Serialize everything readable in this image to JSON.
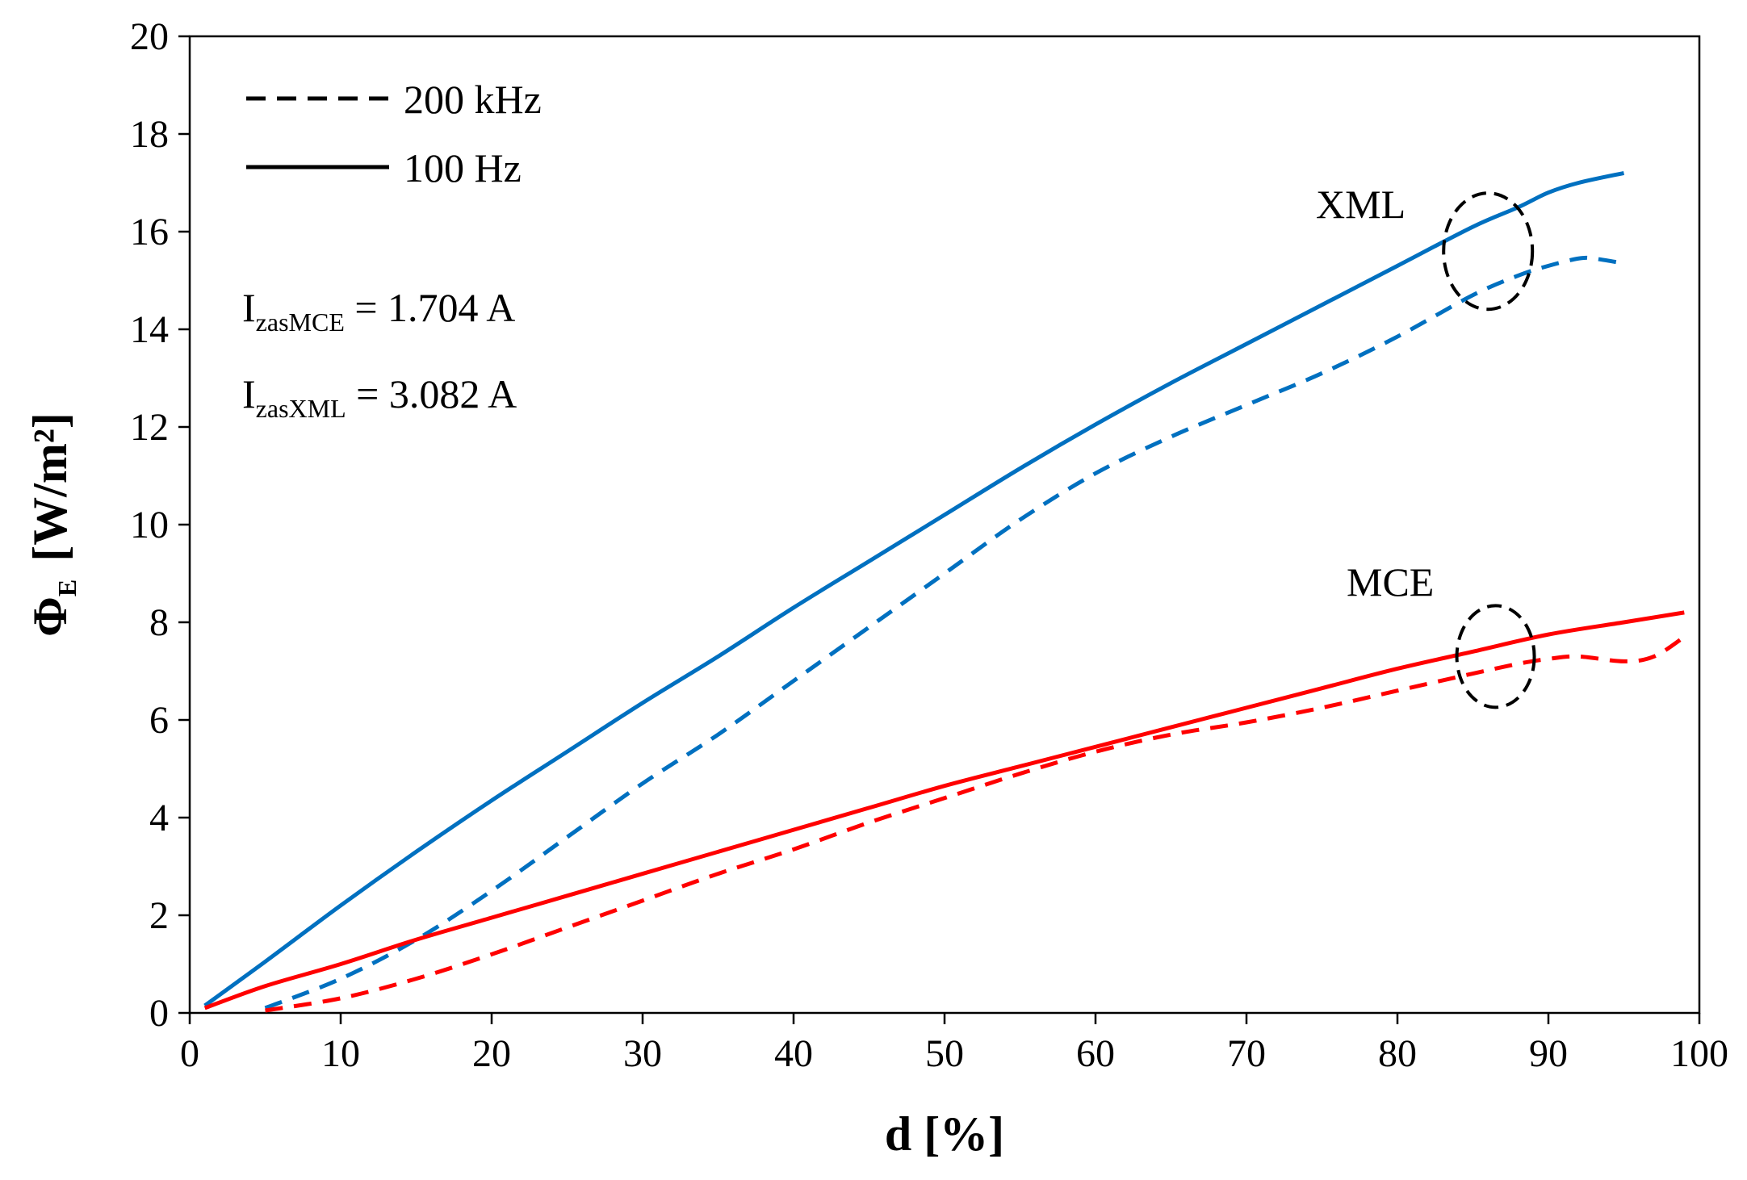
{
  "chart_data": {
    "type": "line",
    "title": "",
    "xlabel": "d [%]",
    "ylabel": {
      "symbol": "Φ",
      "subscript": "E",
      "unit": "[W/m²]"
    },
    "xlim": [
      0,
      100
    ],
    "ylim": [
      0,
      20
    ],
    "xticks": [
      "0",
      "10",
      "20",
      "30",
      "40",
      "50",
      "60",
      "70",
      "80",
      "90",
      "100"
    ],
    "yticks": [
      "0",
      "2",
      "4",
      "6",
      "8",
      "10",
      "12",
      "14",
      "16",
      "18",
      "20"
    ],
    "grid": false,
    "legend": {
      "position": "top-left",
      "entries": [
        {
          "label": "200 kHz",
          "style": "dashed"
        },
        {
          "label": "100 Hz",
          "style": "solid"
        }
      ]
    },
    "colors": {
      "XML": "#0070C0",
      "MCE": "#FF0000"
    },
    "series": [
      {
        "name": "XML 100 Hz",
        "group": "XML",
        "style": "solid",
        "x": [
          1,
          5,
          10,
          15,
          20,
          25,
          30,
          35,
          40,
          45,
          50,
          55,
          60,
          65,
          70,
          75,
          80,
          85,
          88,
          90,
          92,
          95
        ],
        "y": [
          0.15,
          1.05,
          2.2,
          3.3,
          4.35,
          5.35,
          6.35,
          7.3,
          8.3,
          9.25,
          10.2,
          11.15,
          12.05,
          12.9,
          13.7,
          14.5,
          15.3,
          16.1,
          16.5,
          16.8,
          17.0,
          17.2
        ]
      },
      {
        "name": "XML 200 kHz",
        "group": "XML",
        "style": "dashed",
        "x": [
          5,
          10,
          15,
          20,
          25,
          30,
          35,
          40,
          45,
          50,
          55,
          60,
          65,
          70,
          75,
          80,
          85,
          88,
          90,
          92,
          93,
          95
        ],
        "y": [
          0.1,
          0.7,
          1.5,
          2.5,
          3.6,
          4.7,
          5.7,
          6.8,
          7.9,
          9.0,
          10.1,
          11.05,
          11.8,
          12.45,
          13.1,
          13.85,
          14.7,
          15.1,
          15.3,
          15.45,
          15.45,
          15.35
        ]
      },
      {
        "name": "MCE 100 Hz",
        "group": "MCE",
        "style": "solid",
        "x": [
          1,
          5,
          10,
          15,
          20,
          25,
          30,
          35,
          40,
          45,
          50,
          55,
          60,
          65,
          70,
          75,
          80,
          85,
          90,
          95,
          99
        ],
        "y": [
          0.1,
          0.55,
          1.0,
          1.5,
          1.95,
          2.4,
          2.85,
          3.3,
          3.75,
          4.2,
          4.65,
          5.05,
          5.45,
          5.85,
          6.25,
          6.65,
          7.05,
          7.4,
          7.75,
          8.0,
          8.2
        ]
      },
      {
        "name": "MCE 200 kHz",
        "group": "MCE",
        "style": "dashed",
        "x": [
          5,
          10,
          15,
          20,
          25,
          30,
          35,
          40,
          45,
          50,
          55,
          60,
          65,
          70,
          75,
          80,
          85,
          88,
          90,
          92,
          95,
          97,
          99
        ],
        "y": [
          0.05,
          0.3,
          0.7,
          1.2,
          1.75,
          2.3,
          2.85,
          3.35,
          3.9,
          4.4,
          4.9,
          5.35,
          5.7,
          5.95,
          6.25,
          6.6,
          6.95,
          7.15,
          7.25,
          7.3,
          7.2,
          7.3,
          7.7
        ]
      }
    ],
    "annotations": [
      {
        "id": "xml",
        "text": "XML",
        "ellipse_center": [
          86,
          15.6
        ]
      },
      {
        "id": "mce",
        "text": "MCE",
        "ellipse_center": [
          86.5,
          7.3
        ]
      },
      {
        "id": "i1",
        "prefix": "I",
        "subscript": "zasMCE",
        "value": " = 1.704 A"
      },
      {
        "id": "i2",
        "prefix": "I",
        "subscript": "zasXML",
        "value": " = 3.082 A"
      }
    ]
  }
}
